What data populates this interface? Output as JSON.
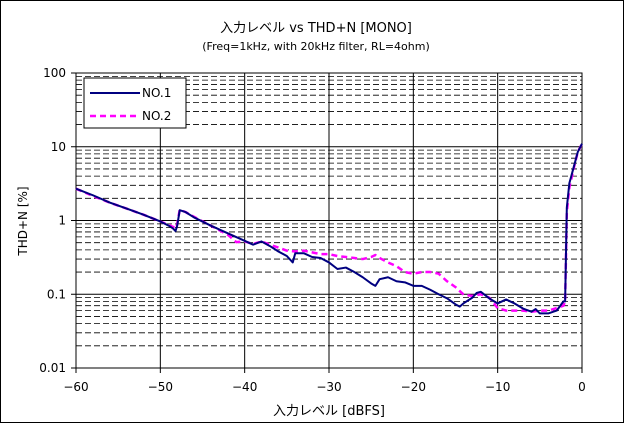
{
  "chart_data": {
    "type": "line",
    "title": "入力レベル vs THD+N [MONO]",
    "subtitle": "(Freq=1kHz, with 20kHz filter, RL=4ohm)",
    "xlabel": "入力レベル [dBFS]",
    "ylabel": "THD+N [%]",
    "xlim": [
      -60,
      0
    ],
    "ylim": [
      0.01,
      100
    ],
    "yscale": "log",
    "x_ticks": [
      -60,
      -50,
      -40,
      -30,
      -20,
      -10,
      0
    ],
    "x_tick_labels": [
      "−60",
      "−50",
      "−40",
      "−30",
      "−20",
      "−10",
      "0"
    ],
    "y_ticks": [
      0.01,
      0.1,
      1,
      10,
      100
    ],
    "y_tick_labels": [
      "0.01",
      "0.1",
      "1",
      "10",
      "100"
    ],
    "grid": true,
    "legend": "top-left",
    "series": [
      {
        "name": "NO.1",
        "color": "#000080",
        "style": "solid",
        "points": [
          [
            -60,
            2.7
          ],
          [
            -58,
            2.2
          ],
          [
            -56,
            1.75
          ],
          [
            -54,
            1.45
          ],
          [
            -52,
            1.2
          ],
          [
            -50,
            0.97
          ],
          [
            -49,
            0.85
          ],
          [
            -48.5,
            0.78
          ],
          [
            -48.2,
            0.72
          ],
          [
            -48,
            0.85
          ],
          [
            -47.7,
            1.38
          ],
          [
            -47,
            1.3
          ],
          [
            -46,
            1.1
          ],
          [
            -44,
            0.85
          ],
          [
            -42,
            0.67
          ],
          [
            -40,
            0.53
          ],
          [
            -39,
            0.47
          ],
          [
            -38,
            0.52
          ],
          [
            -37,
            0.45
          ],
          [
            -36,
            0.38
          ],
          [
            -35,
            0.33
          ],
          [
            -34.3,
            0.27
          ],
          [
            -34,
            0.36
          ],
          [
            -33,
            0.36
          ],
          [
            -32,
            0.32
          ],
          [
            -31,
            0.31
          ],
          [
            -30,
            0.27
          ],
          [
            -29,
            0.22
          ],
          [
            -28,
            0.23
          ],
          [
            -27,
            0.2
          ],
          [
            -26,
            0.17
          ],
          [
            -25,
            0.14
          ],
          [
            -24.5,
            0.13
          ],
          [
            -24,
            0.16
          ],
          [
            -23,
            0.17
          ],
          [
            -22,
            0.15
          ],
          [
            -21,
            0.145
          ],
          [
            -20,
            0.13
          ],
          [
            -19,
            0.13
          ],
          [
            -18,
            0.115
          ],
          [
            -17,
            0.1
          ],
          [
            -16,
            0.088
          ],
          [
            -15,
            0.073
          ],
          [
            -14.5,
            0.068
          ],
          [
            -14,
            0.076
          ],
          [
            -13,
            0.09
          ],
          [
            -12.5,
            0.104
          ],
          [
            -12,
            0.108
          ],
          [
            -11,
            0.088
          ],
          [
            -10,
            0.075
          ],
          [
            -9,
            0.085
          ],
          [
            -8,
            0.075
          ],
          [
            -7,
            0.064
          ],
          [
            -6,
            0.058
          ],
          [
            -5.5,
            0.063
          ],
          [
            -5,
            0.055
          ],
          [
            -4,
            0.055
          ],
          [
            -3,
            0.06
          ],
          [
            -2.2,
            0.08
          ],
          [
            -2,
            0.08
          ],
          [
            -1.8,
            1.5
          ],
          [
            -1.5,
            3.2
          ],
          [
            -1,
            5.2
          ],
          [
            -0.5,
            8.5
          ],
          [
            0,
            11
          ]
        ]
      },
      {
        "name": "NO.2",
        "color": "#ff00ff",
        "style": "dashed",
        "points": [
          [
            -60,
            2.7
          ],
          [
            -58,
            2.15
          ],
          [
            -56,
            1.75
          ],
          [
            -54,
            1.45
          ],
          [
            -52,
            1.2
          ],
          [
            -50,
            0.97
          ],
          [
            -49,
            0.87
          ],
          [
            -48.5,
            0.82
          ],
          [
            -48.2,
            0.78
          ],
          [
            -48,
            0.9
          ],
          [
            -47.7,
            1.4
          ],
          [
            -47,
            1.3
          ],
          [
            -46,
            1.12
          ],
          [
            -44,
            0.85
          ],
          [
            -42,
            0.64
          ],
          [
            -41,
            0.51
          ],
          [
            -40,
            0.52
          ],
          [
            -39,
            0.48
          ],
          [
            -38,
            0.52
          ],
          [
            -37,
            0.47
          ],
          [
            -36,
            0.43
          ],
          [
            -35,
            0.39
          ],
          [
            -34,
            0.38
          ],
          [
            -33,
            0.39
          ],
          [
            -32,
            0.37
          ],
          [
            -31,
            0.35
          ],
          [
            -30,
            0.35
          ],
          [
            -29,
            0.33
          ],
          [
            -28,
            0.32
          ],
          [
            -27,
            0.31
          ],
          [
            -26,
            0.3
          ],
          [
            -25,
            0.32
          ],
          [
            -24.5,
            0.34
          ],
          [
            -24,
            0.31
          ],
          [
            -23,
            0.27
          ],
          [
            -22,
            0.24
          ],
          [
            -21,
            0.2
          ],
          [
            -20,
            0.19
          ],
          [
            -19,
            0.2
          ],
          [
            -18,
            0.2
          ],
          [
            -17,
            0.19
          ],
          [
            -16,
            0.15
          ],
          [
            -15,
            0.125
          ],
          [
            -14,
            0.098
          ],
          [
            -13,
            0.095
          ],
          [
            -12,
            0.1
          ],
          [
            -11,
            0.09
          ],
          [
            -10,
            0.065
          ],
          [
            -9,
            0.06
          ],
          [
            -8,
            0.06
          ],
          [
            -7,
            0.06
          ],
          [
            -6,
            0.058
          ],
          [
            -5,
            0.06
          ],
          [
            -4,
            0.06
          ],
          [
            -3,
            0.065
          ],
          [
            -2.2,
            0.07
          ],
          [
            -2,
            0.08
          ],
          [
            -1.8,
            1.3
          ],
          [
            -1.5,
            2.8
          ],
          [
            -1,
            5.0
          ],
          [
            -0.5,
            8.5
          ],
          [
            0,
            11
          ]
        ]
      }
    ]
  }
}
